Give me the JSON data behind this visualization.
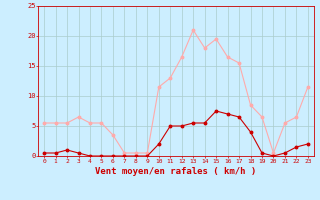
{
  "hours": [
    0,
    1,
    2,
    3,
    4,
    5,
    6,
    7,
    8,
    9,
    10,
    11,
    12,
    13,
    14,
    15,
    16,
    17,
    18,
    19,
    20,
    21,
    22,
    23
  ],
  "wind_avg": [
    0.5,
    0.5,
    1.0,
    0.5,
    0.0,
    0.0,
    0.0,
    0.0,
    0.0,
    0.0,
    2.0,
    5.0,
    5.0,
    5.5,
    5.5,
    7.5,
    7.0,
    6.5,
    4.0,
    0.5,
    0.0,
    0.5,
    1.5,
    2.0
  ],
  "wind_gust": [
    5.5,
    5.5,
    5.5,
    6.5,
    5.5,
    5.5,
    3.5,
    0.5,
    0.5,
    0.5,
    11.5,
    13.0,
    16.5,
    21.0,
    18.0,
    19.5,
    16.5,
    15.5,
    8.5,
    6.5,
    0.5,
    5.5,
    6.5,
    11.5
  ],
  "color_avg": "#cc0000",
  "color_gust": "#ffaaaa",
  "bg_color": "#cceeff",
  "grid_color": "#aacccc",
  "xlabel": "Vent moyen/en rafales ( km/h )",
  "xlabel_color": "#cc0000",
  "tick_color": "#cc0000",
  "spine_color": "#cc0000",
  "ylim": [
    0,
    25
  ],
  "yticks": [
    0,
    5,
    10,
    15,
    20,
    25
  ],
  "xlim": [
    -0.5,
    23.5
  ]
}
